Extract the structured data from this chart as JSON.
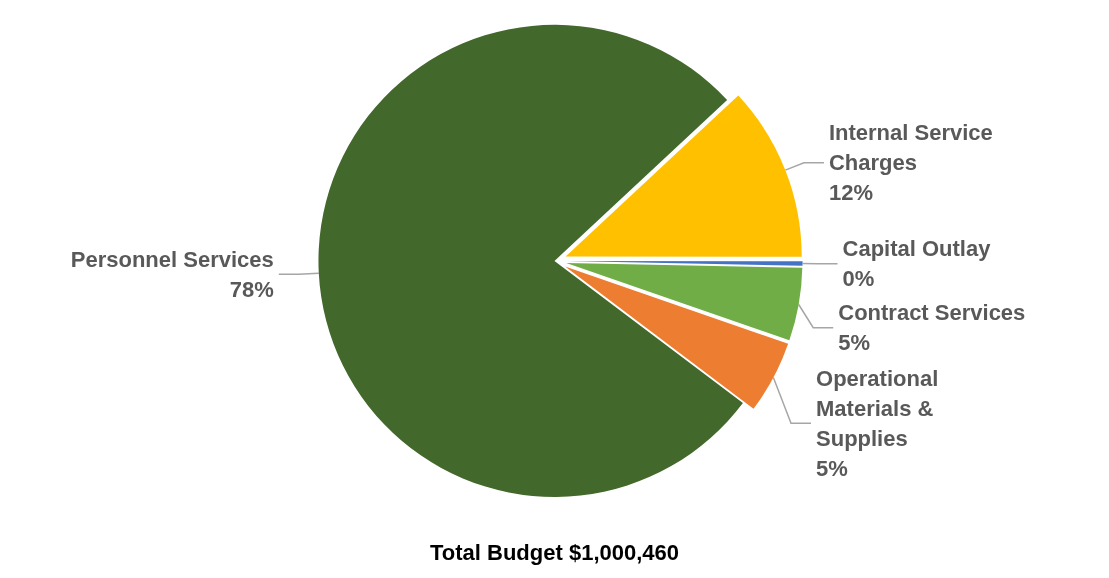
{
  "chart_data": {
    "type": "pie",
    "title": "Total Budget $1,000,460",
    "categories": [
      "Internal Service Charges",
      "Capital Outlay",
      "Contract Services",
      "Operational Materials & Supplies",
      "Personnel Services"
    ],
    "values": [
      12,
      0.3,
      5,
      5,
      78
    ],
    "value_labels": [
      "12%",
      "0%",
      "5%",
      "5%",
      "78%"
    ],
    "colors": [
      "#ffc000",
      "#4472c4",
      "#70ad47",
      "#ed7d31",
      "#43682b"
    ],
    "legend": false
  }
}
